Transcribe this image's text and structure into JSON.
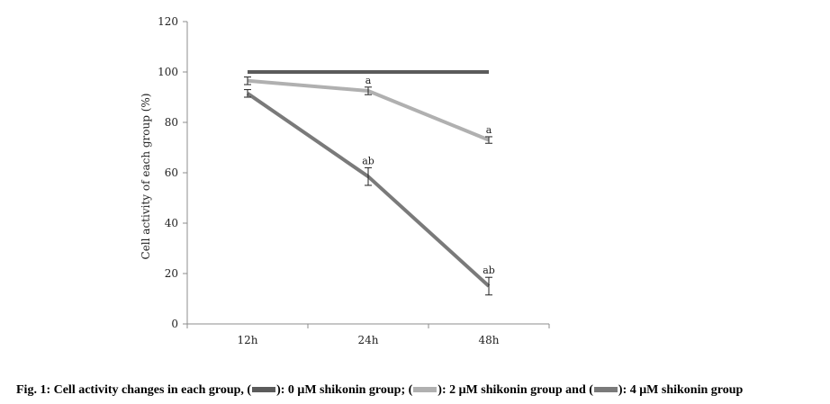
{
  "chart_data": {
    "type": "line",
    "categories": [
      "12h",
      "24h",
      "48h"
    ],
    "ylabel": "Cell activity of each group  (%)",
    "xlabel": "",
    "ylim": [
      0,
      120
    ],
    "yticks": [
      0,
      20,
      40,
      60,
      80,
      100,
      120
    ],
    "grid": false,
    "series": [
      {
        "name": "0 μM shikonin group",
        "color": "#5b5b5b",
        "values": [
          100,
          100,
          100
        ],
        "errors": [
          0,
          0,
          0
        ],
        "annotations": [
          "",
          "",
          ""
        ]
      },
      {
        "name": "2 μM shikonin group",
        "color": "#b0b0b0",
        "values": [
          96.5,
          92.5,
          73
        ],
        "errors": [
          1.5,
          1.5,
          1.3
        ],
        "annotations": [
          "",
          "a",
          "a"
        ]
      },
      {
        "name": "4 μM shikonin group",
        "color": "#7a7a7a",
        "values": [
          91.5,
          58.5,
          15
        ],
        "errors": [
          1.5,
          3.5,
          3.5
        ],
        "annotations": [
          "",
          "ab",
          "ab"
        ]
      }
    ]
  },
  "caption": {
    "prefix": "Fig. 1: Cell activity changes in each group, (",
    "part1": "): 0 μM shikonin group; (",
    "part2": "): 2 μM shikonin group and (",
    "part3": "): 4 μM shikonin group"
  }
}
